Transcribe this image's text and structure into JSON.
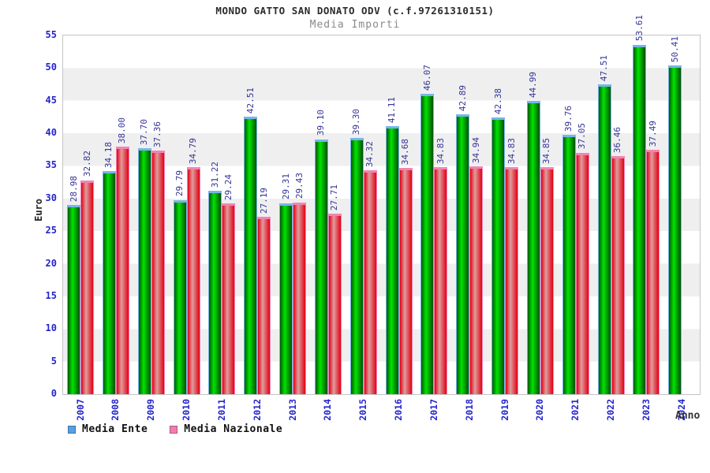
{
  "header": {
    "title": "MONDO GATTO SAN DONATO ODV (c.f.97261310151)",
    "subtitle": "Media Importi"
  },
  "chart_data": {
    "type": "bar",
    "title": "MONDO GATTO SAN DONATO ODV (c.f.97261310151)",
    "subtitle": "Media Importi",
    "xlabel": "Anno",
    "ylabel": "Euro",
    "ylim": [
      0,
      55
    ],
    "ytick_step": 5,
    "yticks": [
      "0",
      "5",
      "10",
      "15",
      "20",
      "25",
      "30",
      "35",
      "40",
      "45",
      "50",
      "55"
    ],
    "grid": "alternating-horizontal-bands",
    "legend_position": "bottom-left",
    "categories": [
      "2007",
      "2008",
      "2009",
      "2010",
      "2011",
      "2012",
      "2013",
      "2014",
      "2015",
      "2016",
      "2017",
      "2018",
      "2019",
      "2020",
      "2021",
      "2022",
      "2023",
      "2024"
    ],
    "series": [
      {
        "name": "Media Ente",
        "values": [
          "28.98",
          "34.18",
          "37.70",
          "29.79",
          "31.22",
          "42.51",
          "29.31",
          "39.10",
          "39.30",
          "41.11",
          "46.07",
          "42.89",
          "42.38",
          "44.99",
          "39.76",
          "47.51",
          "53.61",
          "50.41"
        ]
      },
      {
        "name": "Media Nazionale",
        "values": [
          "32.82",
          "38.00",
          "37.36",
          "34.79",
          "29.24",
          "27.19",
          "29.43",
          "27.71",
          "34.32",
          "34.68",
          "34.83",
          "34.94",
          "34.83",
          "34.85",
          "37.05",
          "36.46",
          "37.49",
          null
        ]
      }
    ]
  },
  "colors": {
    "bar_ente_gradient": [
      "#005a00",
      "#00e400",
      "#005000"
    ],
    "bar_ente_outline": "#77b5e8",
    "bar_nazionale_gradient": [
      "#e30012",
      "#de9e9e",
      "#e30012"
    ],
    "bar_nazionale_outline": "#f383b5",
    "legend_ente_fill": "#55a1e4",
    "legend_ente_border": "#3c71a8",
    "legend_nazionale_fill": "#ee7fb2",
    "legend_nazionale_border": "#b25484",
    "tick_label": "#2424cc",
    "value_label": "#343499",
    "band_gray": "#efefef",
    "band_white": "#ffffff"
  }
}
